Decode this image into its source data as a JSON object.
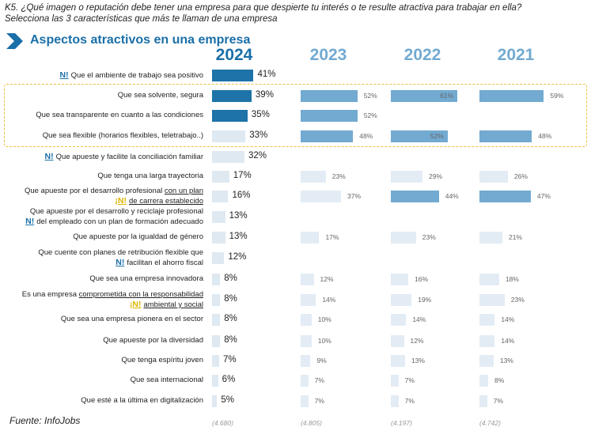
{
  "question": {
    "line1": "K5. ¿Qué imagen o reputación debe tener una empresa para que despierte tu interés o te resulte atractiva para trabajar en ella?",
    "line2": "Selecciona las 3 características que más te llaman de una empresa"
  },
  "section_title": "Aspectos atractivos en una empresa",
  "source": "Fuente: InfoJobs",
  "colors": {
    "year_2024": "#1b6fa8",
    "year_prev": "#72aad1",
    "bar_2024": "#1e73a8",
    "bar_2024_light": "#dfe9f2",
    "bar_prev": "#72aad1",
    "bar_prev_light": "#e3ecf4",
    "highlight_border": "#f1be3e",
    "new_badge": "#1b6fa8",
    "new_badge_alt": "#e0b400"
  },
  "chart_data": {
    "type": "bar",
    "orientation": "horizontal",
    "title": "Aspectos atractivos en una empresa",
    "years": [
      "2024",
      "2023",
      "2022",
      "2021"
    ],
    "bases": [
      "(4.680)",
      "(4.805)",
      "(4.197)",
      "(4.742)"
    ],
    "categories": [
      {
        "label": "Que el ambiente de trabajo sea positivo",
        "new": "N!",
        "values": [
          41,
          null,
          null,
          null
        ],
        "highlighted": false
      },
      {
        "label": "Que sea solvente, segura",
        "values": [
          39,
          52,
          61,
          59
        ],
        "highlighted": true
      },
      {
        "label": "Que sea transparente en cuanto a las condiciones",
        "values": [
          35,
          52,
          null,
          null
        ],
        "highlighted": true
      },
      {
        "label": "Que sea flexible (horarios flexibles, teletrabajo..)",
        "values": [
          33,
          48,
          52,
          48
        ],
        "highlighted": true
      },
      {
        "label": "Que apueste y facilite la conciliación familiar",
        "new": "N!",
        "values": [
          32,
          null,
          null,
          null
        ],
        "highlighted": false
      },
      {
        "label": "Que tenga una larga trayectoria",
        "values": [
          17,
          23,
          29,
          26
        ],
        "highlighted": false
      },
      {
        "label_l1_pre": "Que apueste por el desarrollo profesional ",
        "label_l1_ul": "con un plan",
        "label_l2": "de carrera establecido",
        "new": "¡N!",
        "values": [
          16,
          37,
          44,
          47
        ],
        "highlighted": false
      },
      {
        "label_l1": "Que apueste por el desarrollo y reciclaje profesional",
        "label_l2": "del empleado con un plan de formación adecuado",
        "new": "N!",
        "values": [
          13,
          null,
          null,
          null
        ],
        "highlighted": false
      },
      {
        "label": "Que apueste por la igualdad de género",
        "values": [
          13,
          17,
          23,
          21
        ],
        "highlighted": false
      },
      {
        "label_l1": "Que cuente con planes de retribución flexible que",
        "label_l2": "facilitan el ahorro fiscal",
        "new": "N!",
        "values": [
          12,
          null,
          null,
          null
        ],
        "highlighted": false
      },
      {
        "label": "Que sea una empresa innovadora",
        "values": [
          8,
          12,
          16,
          18
        ],
        "highlighted": false
      },
      {
        "label_l1_pre": "Es una empresa ",
        "label_l1_ul": "comprometida con la responsabilidad",
        "label_l2": "ambiental y social",
        "new": "¡N!",
        "values": [
          8,
          14,
          19,
          23
        ],
        "highlighted": false
      },
      {
        "label": "Que sea una empresa pionera en el sector",
        "values": [
          8,
          10,
          14,
          14
        ],
        "highlighted": false
      },
      {
        "label": "Que apueste por la diversidad",
        "values": [
          8,
          10,
          12,
          14
        ],
        "highlighted": false
      },
      {
        "label": "Que tenga espíritu joven",
        "values": [
          7,
          9,
          13,
          13
        ],
        "highlighted": false
      },
      {
        "label": "Que sea internacional",
        "values": [
          6,
          7,
          7,
          8
        ],
        "highlighted": false
      },
      {
        "label": "Que esté a la última en digitalización",
        "values": [
          5,
          7,
          7,
          7
        ],
        "highlighted": false
      }
    ],
    "value_suffix": "%"
  }
}
